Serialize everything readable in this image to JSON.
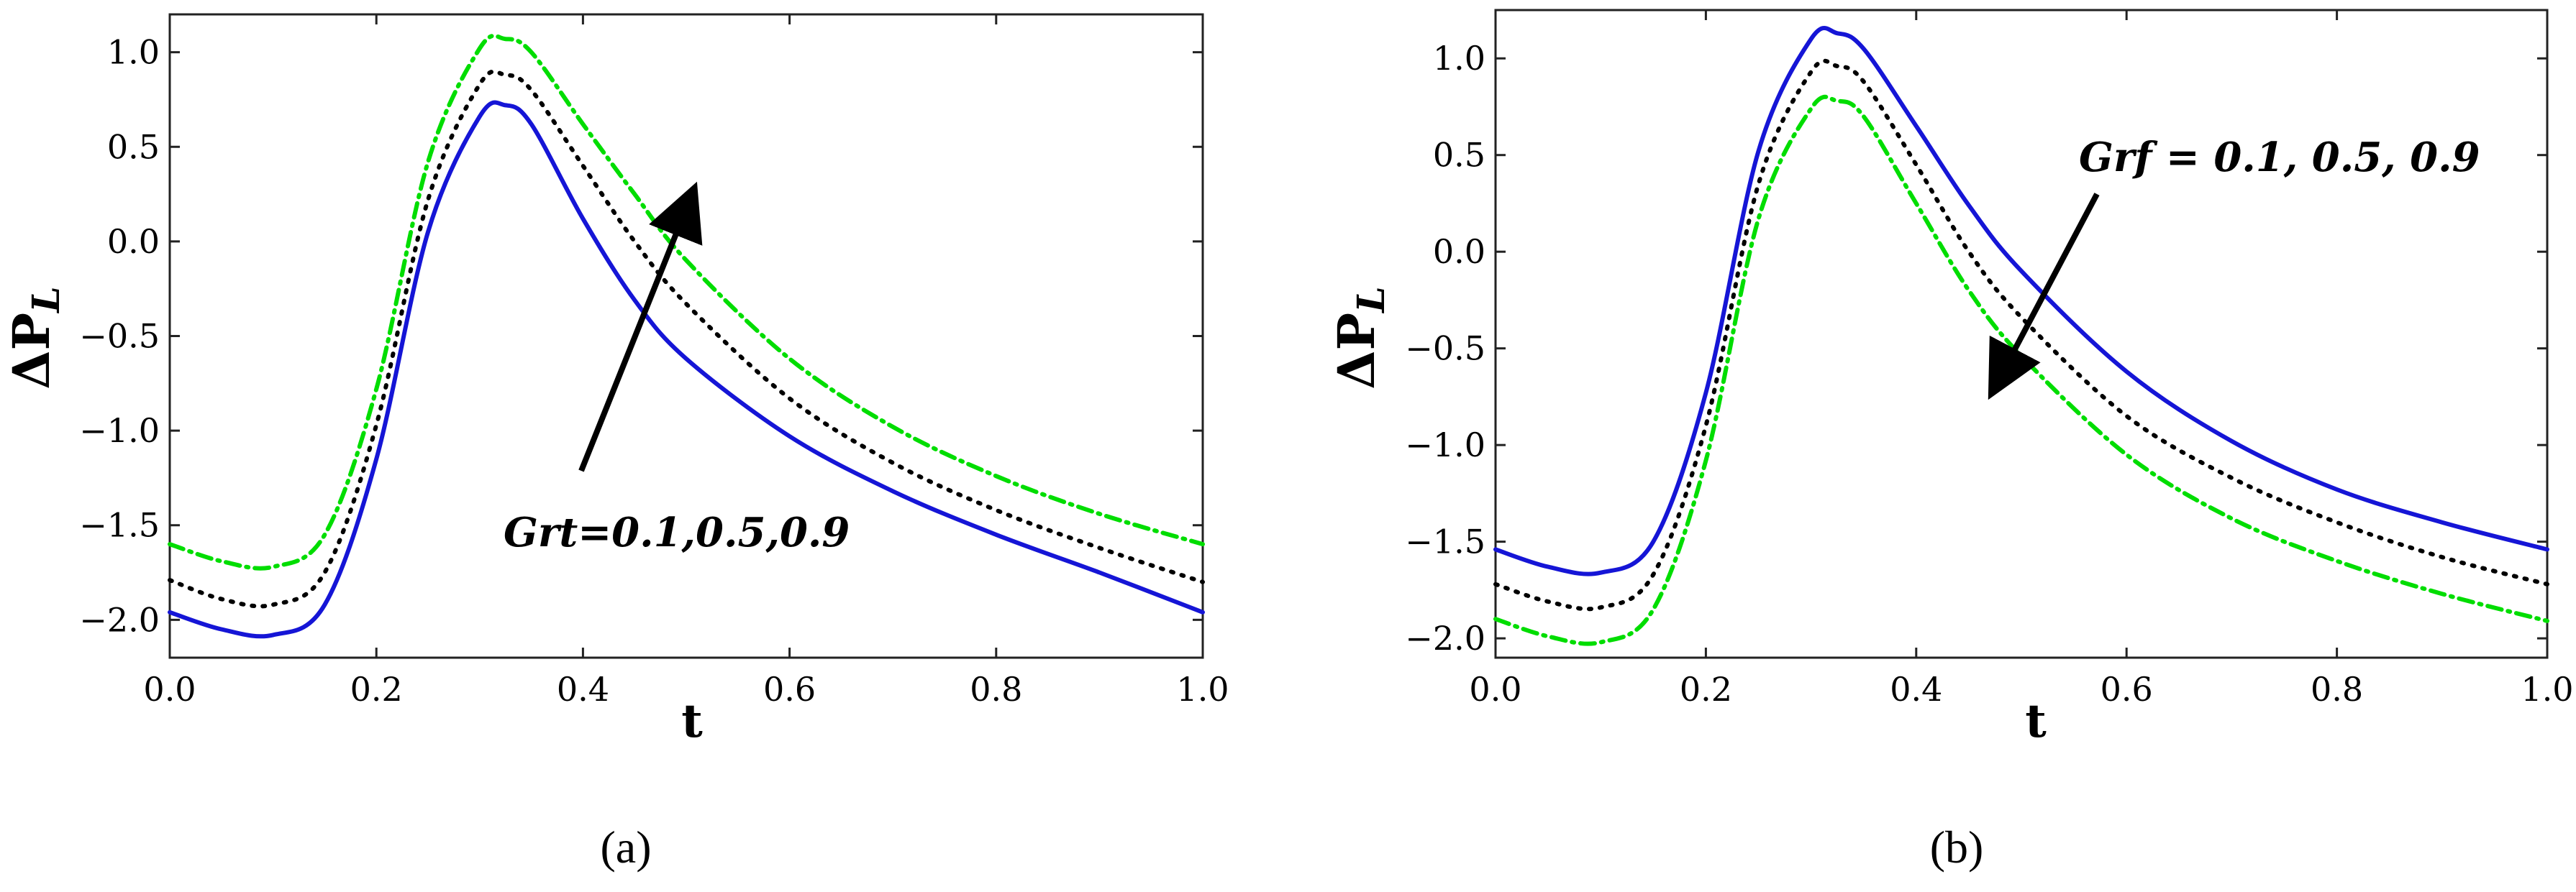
{
  "chart_data": [
    {
      "panel": "a",
      "type": "line",
      "caption": "(a)",
      "xlabel": "t",
      "ylabel_main": "ΔP",
      "ylabel_sub": "L",
      "xlim": [
        0.0,
        1.0
      ],
      "ylim": [
        -2.2,
        1.2
      ],
      "xticks": [
        "0.0",
        "0.2",
        "0.4",
        "0.6",
        "0.8",
        "1.0"
      ],
      "yticks": [
        "-2.0",
        "-1.5",
        "-1.0",
        "-0.5",
        "0.0",
        "0.5",
        "1.0"
      ],
      "annotation": "Grt=0.1,0.5,0.9",
      "x": [
        0.0,
        0.05,
        0.1,
        0.15,
        0.2,
        0.25,
        0.3,
        0.325,
        0.35,
        0.4,
        0.45,
        0.5,
        0.6,
        0.7,
        0.8,
        0.9,
        1.0
      ],
      "series": [
        {
          "name": "Grt=0.1",
          "color": "#1515d6",
          "style": "solid",
          "values": [
            -1.96,
            -2.05,
            -2.08,
            -1.92,
            -1.15,
            0.05,
            0.66,
            0.72,
            0.62,
            0.12,
            -0.31,
            -0.62,
            -1.03,
            -1.32,
            -1.55,
            -1.75,
            -1.96
          ]
        },
        {
          "name": "Grt=0.5",
          "color": "#000000",
          "style": "dotted",
          "values": [
            -1.79,
            -1.89,
            -1.92,
            -1.75,
            -0.97,
            0.22,
            0.83,
            0.88,
            0.8,
            0.4,
            0.0,
            -0.33,
            -0.83,
            -1.17,
            -1.42,
            -1.62,
            -1.8
          ]
        },
        {
          "name": "Grt=0.9",
          "color": "#00dd00",
          "style": "dashdot",
          "values": [
            -1.6,
            -1.69,
            -1.72,
            -1.55,
            -0.78,
            0.42,
            1.02,
            1.07,
            1.0,
            0.62,
            0.25,
            -0.1,
            -0.62,
            -0.98,
            -1.24,
            -1.44,
            -1.6
          ]
        }
      ]
    },
    {
      "panel": "b",
      "type": "line",
      "caption": "(b)",
      "xlabel": "t",
      "ylabel_main": "ΔP",
      "ylabel_sub": "L",
      "xlim": [
        0.0,
        1.0
      ],
      "ylim": [
        -2.1,
        1.25
      ],
      "xticks": [
        "0.0",
        "0.2",
        "0.4",
        "0.6",
        "0.8",
        "1.0"
      ],
      "yticks": [
        "-2.0",
        "-1.5",
        "-1.0",
        "-0.5",
        "0.0",
        "0.5",
        "1.0"
      ],
      "annotation": "Grf = 0.1, 0.5, 0.9",
      "x": [
        0.0,
        0.05,
        0.1,
        0.15,
        0.2,
        0.25,
        0.3,
        0.325,
        0.35,
        0.4,
        0.45,
        0.5,
        0.6,
        0.7,
        0.8,
        0.9,
        1.0
      ],
      "series": [
        {
          "name": "Grf=0.1",
          "color": "#1515d6",
          "style": "solid",
          "values": [
            -1.54,
            -1.63,
            -1.66,
            -1.5,
            -0.73,
            0.52,
            1.1,
            1.13,
            1.05,
            0.65,
            0.24,
            -0.1,
            -0.62,
            -0.98,
            -1.23,
            -1.4,
            -1.54
          ]
        },
        {
          "name": "Grf=0.5",
          "color": "#000000",
          "style": "dotted",
          "values": [
            -1.72,
            -1.81,
            -1.84,
            -1.67,
            -0.9,
            0.35,
            0.93,
            0.96,
            0.88,
            0.45,
            0.0,
            -0.34,
            -0.85,
            -1.17,
            -1.4,
            -1.58,
            -1.72
          ]
        },
        {
          "name": "Grf=0.9",
          "color": "#00dd00",
          "style": "dashdot",
          "values": [
            -1.9,
            -1.99,
            -2.02,
            -1.85,
            -1.08,
            0.17,
            0.74,
            0.78,
            0.7,
            0.25,
            -0.2,
            -0.54,
            -1.05,
            -1.38,
            -1.6,
            -1.77,
            -1.91
          ]
        }
      ]
    }
  ]
}
